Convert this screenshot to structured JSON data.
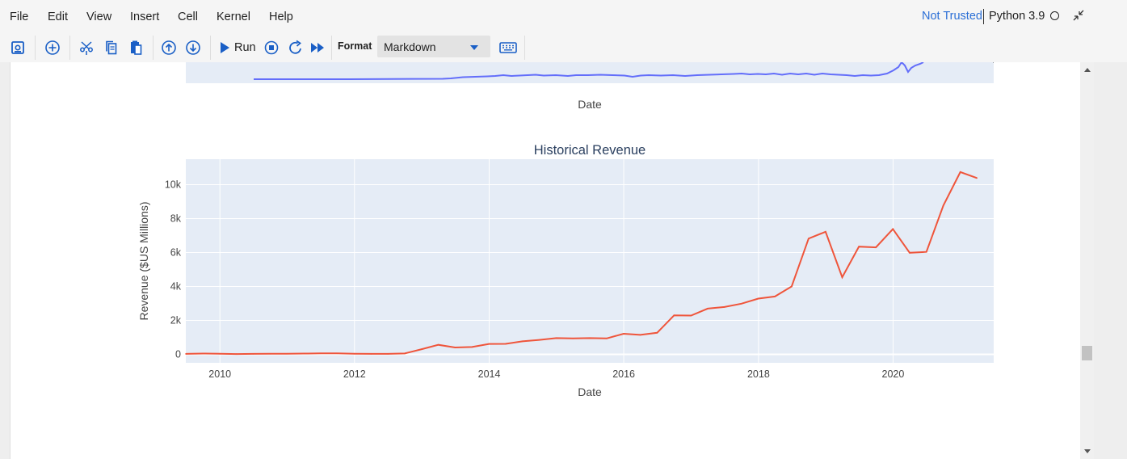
{
  "menu": {
    "items": [
      {
        "label": "File"
      },
      {
        "label": "Edit"
      },
      {
        "label": "View"
      },
      {
        "label": "Insert"
      },
      {
        "label": "Cell"
      },
      {
        "label": "Kernel"
      },
      {
        "label": "Help"
      }
    ],
    "trust_status": "Not Trusted",
    "kernel_name": "Python 3.9"
  },
  "toolbar": {
    "run_label": "Run",
    "format_label": "Format",
    "format_value": "Markdown",
    "icons": [
      "save-icon",
      "add-cell-icon",
      "cut-icon",
      "copy-icon",
      "paste-icon",
      "move-up-icon",
      "move-down-icon",
      "run-icon",
      "stop-icon",
      "restart-icon",
      "fast-forward-icon",
      "keyboard-icon"
    ]
  },
  "colors": {
    "accent": "#1a5fc6",
    "price_line": "#636efa",
    "revenue_line": "#ef553b",
    "plot_bg": "#e5ecf6"
  },
  "upper_chart": {
    "xlabel": "Date"
  },
  "chart_data": {
    "type": "line",
    "title": "Historical Revenue",
    "xlabel": "Date",
    "ylabel": "Revenue ($US Millions)",
    "x_ticks": [
      "2010",
      "2012",
      "2014",
      "2016",
      "2018",
      "2020"
    ],
    "y_ticks": [
      "0",
      "2k",
      "4k",
      "6k",
      "8k",
      "10k"
    ],
    "xlim": [
      "2009-06-30",
      "2021-06-30"
    ],
    "ylim": [
      -500,
      11500
    ],
    "grid": true,
    "series": [
      {
        "x": [
          "2009-06-30",
          "2009-09-30",
          "2009-12-31",
          "2010-03-31",
          "2010-06-30",
          "2010-09-30",
          "2010-12-31",
          "2011-03-31",
          "2011-06-30",
          "2011-09-30",
          "2011-12-31",
          "2012-03-31",
          "2012-06-30",
          "2012-09-30",
          "2012-12-31",
          "2013-03-31",
          "2013-06-30",
          "2013-09-30",
          "2013-12-31",
          "2014-03-31",
          "2014-06-30",
          "2014-09-30",
          "2014-12-31",
          "2015-03-31",
          "2015-06-30",
          "2015-09-30",
          "2015-12-31",
          "2016-03-31",
          "2016-06-30",
          "2016-09-30",
          "2016-12-31",
          "2017-03-31",
          "2017-06-30",
          "2017-09-30",
          "2017-12-31",
          "2018-03-31",
          "2018-06-30",
          "2018-09-30",
          "2018-12-31",
          "2019-03-31",
          "2019-06-30",
          "2019-09-30",
          "2019-12-31",
          "2020-03-31",
          "2020-06-30",
          "2020-09-30",
          "2020-12-31",
          "2021-03-31"
        ],
        "values": [
          27,
          46,
          33,
          21,
          28,
          31,
          36,
          49,
          58,
          58,
          39,
          30,
          27,
          50,
          306,
          562,
          405,
          431,
          615,
          621,
          769,
          852,
          957,
          940,
          955,
          937,
          1214,
          1147,
          1270,
          2298,
          2285,
          2696,
          2790,
          2985,
          3288,
          3409,
          4002,
          6824,
          7226,
          4541,
          6350,
          6303,
          7384,
          5985,
          6036,
          8771,
          10744,
          10389
        ]
      }
    ]
  }
}
